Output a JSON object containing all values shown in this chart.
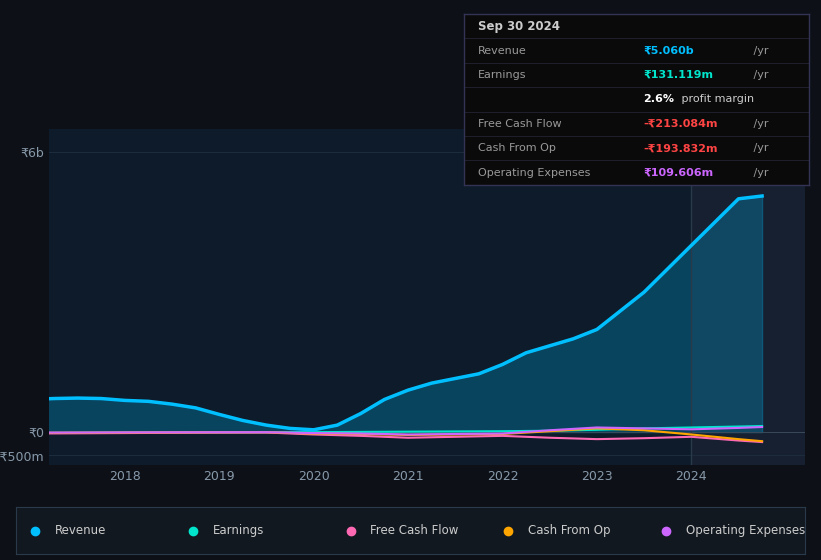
{
  "bg_color": "#0d1117",
  "plot_bg_color": "#0d1b2a",
  "yticks_labels": [
    "₹6b",
    "₹0",
    "-₹500m"
  ],
  "yticks_values": [
    6000000000,
    0,
    -500000000
  ],
  "xlim_start": 2017.2,
  "xlim_end": 2025.2,
  "ylim_min": -700000000,
  "ylim_max": 6500000000,
  "shade_x_start": 2024.0,
  "revenue": {
    "x": [
      2017.0,
      2017.25,
      2017.5,
      2017.75,
      2018.0,
      2018.25,
      2018.5,
      2018.75,
      2019.0,
      2019.25,
      2019.5,
      2019.75,
      2020.0,
      2020.25,
      2020.5,
      2020.75,
      2021.0,
      2021.25,
      2021.5,
      2021.75,
      2022.0,
      2022.25,
      2022.5,
      2022.75,
      2023.0,
      2023.25,
      2023.5,
      2023.75,
      2024.0,
      2024.25,
      2024.5,
      2024.75
    ],
    "y": [
      700000000,
      720000000,
      730000000,
      720000000,
      680000000,
      660000000,
      600000000,
      520000000,
      380000000,
      250000000,
      150000000,
      80000000,
      50000000,
      150000000,
      400000000,
      700000000,
      900000000,
      1050000000,
      1150000000,
      1250000000,
      1450000000,
      1700000000,
      1850000000,
      2000000000,
      2200000000,
      2600000000,
      3000000000,
      3500000000,
      4000000000,
      4500000000,
      5000000000,
      5060000000
    ],
    "color": "#00bfff",
    "linewidth": 2.5
  },
  "earnings": {
    "x": [
      2017.0,
      2017.5,
      2018.0,
      2018.5,
      2019.0,
      2019.5,
      2020.0,
      2020.5,
      2021.0,
      2021.5,
      2022.0,
      2022.5,
      2023.0,
      2023.5,
      2024.0,
      2024.5,
      2024.75
    ],
    "y": [
      -20000000,
      -15000000,
      -10000000,
      -8000000,
      -5000000,
      -3000000,
      0,
      5000000,
      10000000,
      15000000,
      20000000,
      30000000,
      50000000,
      80000000,
      100000000,
      120000000,
      131000000
    ],
    "color": "#00e5cc",
    "linewidth": 1.5
  },
  "free_cash_flow": {
    "x": [
      2017.0,
      2017.5,
      2018.0,
      2018.5,
      2019.0,
      2019.5,
      2020.0,
      2020.5,
      2021.0,
      2021.5,
      2022.0,
      2022.5,
      2023.0,
      2023.5,
      2024.0,
      2024.5,
      2024.75
    ],
    "y": [
      -30000000,
      -25000000,
      -20000000,
      -15000000,
      -10000000,
      -8000000,
      -50000000,
      -80000000,
      -120000000,
      -100000000,
      -80000000,
      -120000000,
      -150000000,
      -130000000,
      -100000000,
      -180000000,
      -213000000
    ],
    "color": "#ff69b4",
    "linewidth": 1.5
  },
  "cash_from_op": {
    "x": [
      2017.0,
      2017.5,
      2018.0,
      2018.5,
      2019.0,
      2019.5,
      2020.0,
      2020.5,
      2021.0,
      2021.5,
      2022.0,
      2022.5,
      2023.0,
      2023.5,
      2024.0,
      2024.5,
      2024.75
    ],
    "y": [
      -15000000,
      -12000000,
      -8000000,
      -5000000,
      -3000000,
      -2000000,
      -30000000,
      -40000000,
      -60000000,
      -50000000,
      -40000000,
      20000000,
      80000000,
      40000000,
      -50000000,
      -150000000,
      -194000000
    ],
    "color": "#ffa500",
    "linewidth": 1.5
  },
  "operating_expenses": {
    "x": [
      2017.0,
      2017.5,
      2018.0,
      2018.5,
      2019.0,
      2019.5,
      2020.0,
      2020.5,
      2021.0,
      2021.5,
      2022.0,
      2022.5,
      2023.0,
      2023.5,
      2024.0,
      2024.5,
      2024.75
    ],
    "y": [
      -10000000,
      -8000000,
      -5000000,
      -3000000,
      -2000000,
      -1000000,
      -20000000,
      -30000000,
      -50000000,
      -40000000,
      -30000000,
      40000000,
      100000000,
      80000000,
      60000000,
      90000000,
      110000000
    ],
    "color": "#cc66ff",
    "linewidth": 1.5
  },
  "legend": [
    {
      "label": "Revenue",
      "color": "#00bfff"
    },
    {
      "label": "Earnings",
      "color": "#00e5cc"
    },
    {
      "label": "Free Cash Flow",
      "color": "#ff69b4"
    },
    {
      "label": "Cash From Op",
      "color": "#ffa500"
    },
    {
      "label": "Operating Expenses",
      "color": "#cc66ff"
    }
  ],
  "grid_color": "#1e2d3d",
  "tick_color": "#8899aa",
  "info_box": {
    "date": "Sep 30 2024",
    "rows": [
      {
        "label": "Revenue",
        "value": "₹5.060b",
        "suffix": " /yr",
        "value_color": "#00bfff",
        "is_margin": false
      },
      {
        "label": "Earnings",
        "value": "₹131.119m",
        "suffix": " /yr",
        "value_color": "#00e5cc",
        "is_margin": false
      },
      {
        "label": "",
        "value": "2.6%",
        "suffix": " profit margin",
        "value_color": "#ffffff",
        "is_margin": true
      },
      {
        "label": "Free Cash Flow",
        "value": "-₹213.084m",
        "suffix": " /yr",
        "value_color": "#ff4444",
        "is_margin": false
      },
      {
        "label": "Cash From Op",
        "value": "-₹193.832m",
        "suffix": " /yr",
        "value_color": "#ff4444",
        "is_margin": false
      },
      {
        "label": "Operating Expenses",
        "value": "₹109.606m",
        "suffix": " /yr",
        "value_color": "#cc66ff",
        "is_margin": false
      }
    ]
  }
}
